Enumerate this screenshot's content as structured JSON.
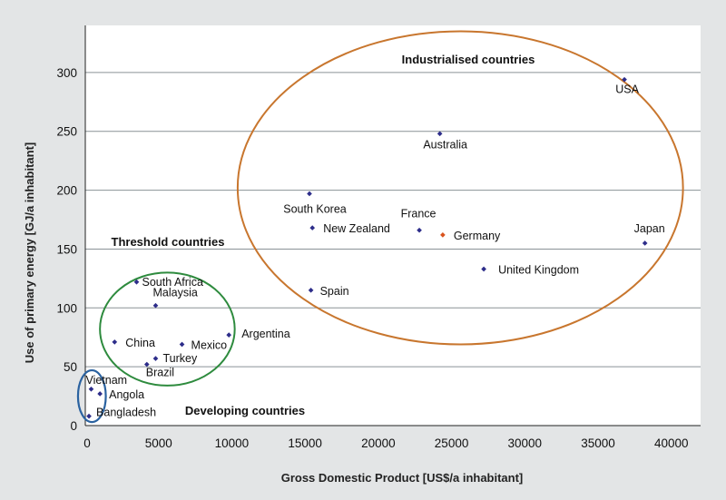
{
  "chart_data": {
    "type": "scatter",
    "xlabel": "Gross Domestic Product [US$/a inhabitant]",
    "ylabel": "Use of primary energy [GJ/a inhabitant]",
    "xlim": [
      0,
      42000
    ],
    "ylim": [
      0,
      340
    ],
    "x_ticks": [
      0,
      5000,
      10000,
      15000,
      20000,
      25000,
      30000,
      35000,
      40000
    ],
    "x_tick_labels": [
      "0",
      "5000",
      "10000",
      "15000",
      "20000",
      "25000",
      "30000",
      "35000",
      "40000"
    ],
    "y_ticks": [
      0,
      50,
      100,
      150,
      200,
      250,
      300
    ],
    "y_tick_labels": [
      "0",
      "50",
      "100",
      "150",
      "200",
      "250",
      "300"
    ],
    "grid": "horizontal",
    "colors": {
      "point": "#2d2d8a",
      "highlight": "#d9541e",
      "industrialised": "#c8762e",
      "threshold": "#2e8b3e",
      "developing": "#2a62a0",
      "grid": "#8a9296",
      "plot_bg": "#ffffff"
    },
    "points": [
      {
        "name": "USA",
        "x": 36800,
        "y": 294
      },
      {
        "name": "Australia",
        "x": 24200,
        "y": 248
      },
      {
        "name": "South Korea",
        "x": 15300,
        "y": 197
      },
      {
        "name": "New Zealand",
        "x": 15500,
        "y": 168
      },
      {
        "name": "France",
        "x": 22800,
        "y": 166
      },
      {
        "name": "Germany",
        "x": 24400,
        "y": 162,
        "highlight": true
      },
      {
        "name": "Japan",
        "x": 38200,
        "y": 155
      },
      {
        "name": "United Kingdom",
        "x": 27200,
        "y": 133
      },
      {
        "name": "Spain",
        "x": 15400,
        "y": 115
      },
      {
        "name": "South Africa",
        "x": 3500,
        "y": 122
      },
      {
        "name": "Malaysia",
        "x": 4800,
        "y": 102
      },
      {
        "name": "Argentina",
        "x": 9800,
        "y": 77
      },
      {
        "name": "China",
        "x": 2000,
        "y": 71
      },
      {
        "name": "Mexico",
        "x": 6600,
        "y": 69
      },
      {
        "name": "Turkey",
        "x": 4800,
        "y": 57
      },
      {
        "name": "Brazil",
        "x": 4200,
        "y": 52
      },
      {
        "name": "Vietnam",
        "x": 400,
        "y": 31
      },
      {
        "name": "Angola",
        "x": 1000,
        "y": 27
      },
      {
        "name": "Bangladesh",
        "x": 250,
        "y": 8
      }
    ],
    "annotations": [
      "Industrialised countries",
      "Threshold countries",
      "Developing countries"
    ]
  }
}
